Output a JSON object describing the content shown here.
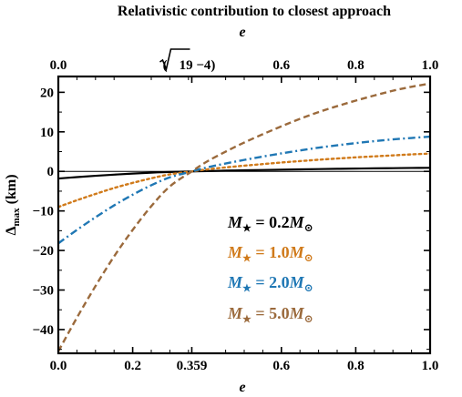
{
  "chart_data": {
    "type": "line",
    "title": "Relativistic contribution to closest approach",
    "xlabel": "e",
    "top_xlabel": "e",
    "ylabel_main": "Δ",
    "ylabel_sub": "max",
    "ylabel_unit": "(km)",
    "xlim": [
      0.0,
      1.0
    ],
    "ylim": [
      -46,
      24
    ],
    "grid": false,
    "legend_position": "right-lower-center",
    "x_ticks": [
      {
        "value": 0.0,
        "label": "0.0"
      },
      {
        "value": 0.2,
        "label": "0.2"
      },
      {
        "value": 0.359,
        "label": "0.359"
      },
      {
        "value": 0.6,
        "label": "0.6"
      },
      {
        "value": 0.8,
        "label": "0.8"
      },
      {
        "value": 1.0,
        "label": "1.0"
      }
    ],
    "top_x_ticks": [
      {
        "value": 0.0,
        "label": "0.0"
      },
      {
        "value": 0.359,
        "label_pre": "(",
        "label_radicand": "19",
        "label_post": " −4)"
      },
      {
        "value": 0.6,
        "label": "0.6"
      },
      {
        "value": 0.8,
        "label": "0.8"
      },
      {
        "value": 1.0,
        "label": "1.0"
      }
    ],
    "y_ticks": [
      {
        "value": 20,
        "label": "20"
      },
      {
        "value": 10,
        "label": "10"
      },
      {
        "value": 0,
        "label": "0"
      },
      {
        "value": -10,
        "label": "−10"
      },
      {
        "value": -20,
        "label": "−20"
      },
      {
        "value": -30,
        "label": "−30"
      },
      {
        "value": -40,
        "label": "−40"
      }
    ],
    "reference_line_y": 0,
    "x": [
      0.0,
      0.05,
      0.1,
      0.15,
      0.2,
      0.25,
      0.3,
      0.359,
      0.4,
      0.45,
      0.5,
      0.55,
      0.6,
      0.65,
      0.7,
      0.75,
      0.8,
      0.85,
      0.9,
      0.95,
      1.0
    ],
    "series": [
      {
        "mass": "0.2",
        "color": "#000000",
        "dash": "solid",
        "values": [
          -1.8,
          -1.45,
          -1.12,
          -0.82,
          -0.55,
          -0.32,
          -0.14,
          0.0,
          0.09,
          0.19,
          0.28,
          0.36,
          0.44,
          0.52,
          0.59,
          0.65,
          0.71,
          0.77,
          0.82,
          0.87,
          0.9
        ]
      },
      {
        "mass": "1.0",
        "color": "#d07a1a",
        "dash": "dot",
        "values": [
          -9.0,
          -7.3,
          -5.7,
          -4.2,
          -2.9,
          -1.75,
          -0.75,
          0.0,
          0.5,
          1.0,
          1.45,
          1.85,
          2.25,
          2.6,
          2.95,
          3.25,
          3.55,
          3.8,
          4.05,
          4.3,
          4.5
        ]
      },
      {
        "mass": "2.0",
        "color": "#1f77b4",
        "dash": "dashdot",
        "values": [
          -18.2,
          -14.8,
          -11.6,
          -8.6,
          -5.9,
          -3.5,
          -1.5,
          0.0,
          1.0,
          2.0,
          2.9,
          3.75,
          4.55,
          5.3,
          6.0,
          6.6,
          7.15,
          7.65,
          8.1,
          8.45,
          8.8
        ]
      },
      {
        "mass": "5.0",
        "color": "#9b6a3c",
        "dash": "dash",
        "values": [
          -45.5,
          -37.0,
          -29.0,
          -21.5,
          -14.8,
          -8.8,
          -3.8,
          0.0,
          2.5,
          5.0,
          7.3,
          9.4,
          11.4,
          13.3,
          15.0,
          16.5,
          17.9,
          19.2,
          20.4,
          21.4,
          22.2
        ]
      }
    ],
    "legend_symbol": "M",
    "legend_sub": "★",
    "legend_eq": " = ",
    "legend_unit": "M",
    "legend_unit_sub": "⊙"
  }
}
